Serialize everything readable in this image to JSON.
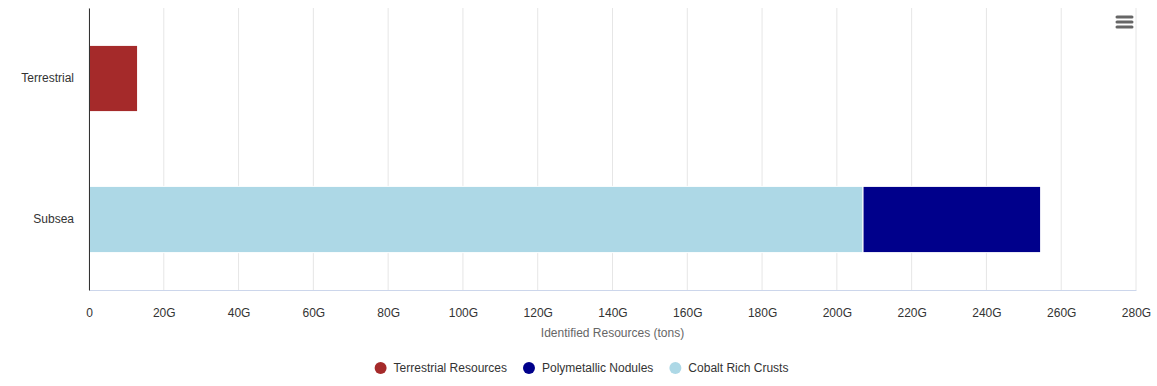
{
  "chart_data": {
    "type": "bar",
    "orientation": "horizontal",
    "stacked": true,
    "grid": true,
    "legend": "bottom",
    "x_label": "Identified Resources (tons)",
    "categories": [
      "Terrestrial",
      "Subsea"
    ],
    "series": [
      {
        "name": "Terrestrial Resources",
        "color": "#a52a2a",
        "values": [
          13000000000,
          null
        ]
      },
      {
        "name": "Polymetallic Nodules",
        "color": "#00008b",
        "values": [
          null,
          47500000000
        ]
      },
      {
        "name": "Cobalt Rich Crusts",
        "color": "#add8e6",
        "values": [
          null,
          207000000000
        ]
      }
    ],
    "xlim": [
      0,
      280000000000
    ],
    "xticks": [
      0,
      {
        "value": 20000000000,
        "label": "20G"
      },
      {
        "value": 40000000000,
        "label": "40G"
      },
      {
        "value": 60000000000,
        "label": "60G"
      },
      {
        "value": 80000000000,
        "label": "80G"
      },
      {
        "value": 100000000000,
        "label": "100G"
      },
      {
        "value": 120000000000,
        "label": "120G"
      },
      {
        "value": 140000000000,
        "label": "140G"
      },
      {
        "value": 160000000000,
        "label": "160G"
      },
      {
        "value": 180000000000,
        "label": "180G"
      },
      {
        "value": 200000000000,
        "label": "200G"
      },
      {
        "value": 220000000000,
        "label": "220G"
      },
      {
        "value": 240000000000,
        "label": "240G"
      },
      {
        "value": 260000000000,
        "label": "260G"
      },
      {
        "value": 280000000000,
        "label": "280G"
      }
    ]
  }
}
